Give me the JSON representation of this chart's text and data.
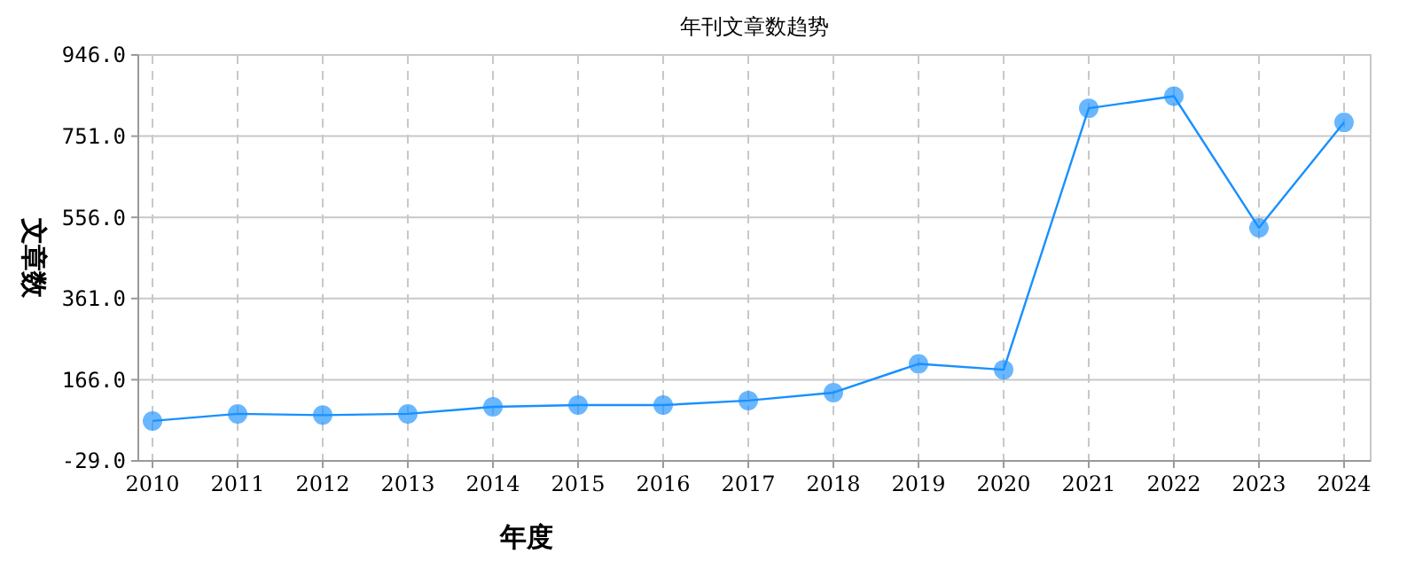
{
  "chart_data": {
    "type": "line",
    "title": "年刊文章数趋势",
    "xlabel": "年度",
    "ylabel": "文章数",
    "categories": [
      "2010",
      "2011",
      "2012",
      "2013",
      "2014",
      "2015",
      "2016",
      "2017",
      "2018",
      "2019",
      "2020",
      "2021",
      "2022",
      "2023",
      "2024"
    ],
    "series": [
      {
        "color": "#1890ff",
        "values": [
          67,
          84,
          81,
          84,
          101,
          105,
          105,
          116,
          135,
          204,
          190,
          818,
          847,
          531,
          784
        ]
      }
    ],
    "ylim": [
      -29,
      946
    ],
    "yticks": [
      {
        "value": -29,
        "label": "-29.0"
      },
      {
        "value": 166,
        "label": "166.0"
      },
      {
        "value": 361,
        "label": "361.0"
      },
      {
        "value": 556,
        "label": "556.0"
      },
      {
        "value": 751,
        "label": "751.0"
      },
      {
        "value": 946,
        "label": "946.0"
      }
    ],
    "grid": true,
    "marker": "circle",
    "line_style": "solid"
  }
}
